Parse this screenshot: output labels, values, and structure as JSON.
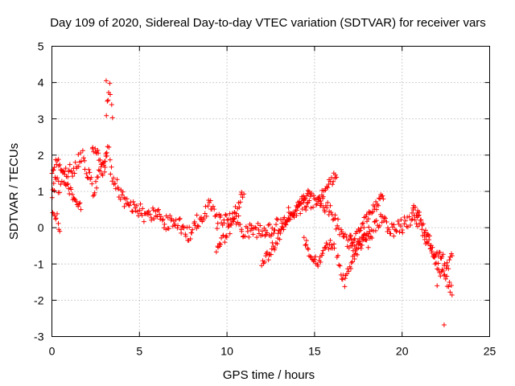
{
  "chart_data": {
    "type": "scatter",
    "title": "Day 109 of 2020, Sidereal Day-to-day VTEC variation (SDTVAR) for receiver vars",
    "xlabel": "GPS time / hours",
    "ylabel": "SDTVAR / TECUs",
    "xlim": [
      0,
      25
    ],
    "ylim": [
      -3,
      5
    ],
    "xticks": [
      0,
      5,
      10,
      15,
      20,
      25
    ],
    "yticks": [
      -3,
      -2,
      -1,
      0,
      1,
      2,
      3,
      4,
      5
    ],
    "grid": true,
    "marker": "+",
    "color": "#ff0000",
    "series": [
      {
        "name": "SDTVAR",
        "trace_x": [
          0.0,
          0.2,
          0.4,
          0.6,
          0.8,
          1.0,
          1.2,
          1.4,
          1.6,
          1.8,
          2.0,
          2.2,
          2.4,
          2.6,
          2.8,
          3.0,
          3.2,
          3.4,
          3.6,
          3.8,
          4.0,
          4.3,
          4.6,
          5.0,
          5.4,
          5.8,
          6.2,
          6.6,
          7.0,
          7.4,
          7.8,
          8.2,
          8.6,
          9.0,
          9.4,
          9.8,
          10.2,
          10.6,
          11.0,
          11.4,
          11.8,
          12.2,
          12.6,
          13.0,
          13.4,
          13.8,
          14.2,
          14.6,
          15.0,
          15.4,
          15.8,
          16.2,
          16.6,
          17.0,
          17.4,
          17.8,
          18.2,
          18.6,
          19.0,
          19.4,
          19.8,
          20.2,
          20.6,
          21.0,
          21.4,
          21.8,
          22.2,
          22.6,
          22.9
        ],
        "trace_y": [
          0.9,
          1.3,
          1.1,
          1.4,
          1.5,
          1.7,
          1.6,
          1.8,
          1.9,
          2.0,
          1.6,
          1.3,
          1.0,
          1.3,
          1.5,
          1.7,
          2.2,
          1.5,
          1.3,
          1.0,
          0.8,
          0.7,
          0.6,
          0.5,
          0.3,
          0.4,
          0.3,
          0.1,
          0.2,
          0.0,
          -0.2,
          0.1,
          0.3,
          0.6,
          0.2,
          0.1,
          0.3,
          0.2,
          -0.2,
          0.0,
          -0.1,
          -0.2,
          0.0,
          0.1,
          0.3,
          0.5,
          0.6,
          0.7,
          0.8,
          0.7,
          0.5,
          0.2,
          -0.2,
          -0.4,
          -0.6,
          -0.4,
          -0.3,
          0.2,
          0.1,
          -0.1,
          0.0,
          0.1,
          0.3,
          0.2,
          -0.3,
          -0.6,
          -0.9,
          -1.0,
          -0.8
        ],
        "branches": [
          {
            "x": [
              0.0,
              0.1,
              0.2,
              0.3,
              0.4,
              0.5
            ],
            "y": [
              0.6,
              0.3,
              0.1,
              0.4,
              0.0,
              -0.1
            ]
          },
          {
            "x": [
              0.0,
              0.2,
              0.5,
              0.9,
              1.3,
              1.7
            ],
            "y": [
              1.5,
              1.9,
              1.6,
              1.1,
              0.8,
              0.6
            ]
          },
          {
            "x": [
              2.3,
              2.6,
              2.9,
              3.2
            ],
            "y": [
              2.3,
              2.0,
              1.8,
              2.0
            ]
          },
          {
            "x": [
              3.1,
              3.2,
              3.3,
              3.4,
              3.5
            ],
            "y": [
              3.2,
              3.6,
              3.9,
              3.5,
              2.8
            ]
          },
          {
            "x": [
              9.4,
              9.8,
              10.2,
              10.6,
              11.0
            ],
            "y": [
              -0.7,
              -0.3,
              0.0,
              0.6,
              1.0
            ]
          },
          {
            "x": [
              12.0,
              12.4,
              12.8,
              13.2,
              13.6,
              14.0,
              14.4,
              14.8
            ],
            "y": [
              -1.1,
              -0.7,
              -0.4,
              0.0,
              0.3,
              0.5,
              0.8,
              1.0
            ]
          },
          {
            "x": [
              14.4,
              14.8,
              15.2,
              15.6,
              16.0,
              16.2
            ],
            "y": [
              -0.3,
              -0.8,
              -1.0,
              -0.6,
              -0.4,
              -0.6
            ]
          },
          {
            "x": [
              15.2,
              15.6,
              16.0,
              16.3
            ],
            "y": [
              0.8,
              1.0,
              1.3,
              1.5
            ]
          },
          {
            "x": [
              16.3,
              16.5,
              16.7,
              17.0,
              17.4,
              17.8,
              18.2
            ],
            "y": [
              -0.8,
              -1.2,
              -1.5,
              -1.1,
              -0.7,
              -0.3,
              0.0
            ]
          },
          {
            "x": [
              17.0,
              17.5,
              18.0,
              18.5,
              19.0
            ],
            "y": [
              -0.4,
              -0.1,
              0.3,
              0.6,
              0.9
            ]
          },
          {
            "x": [
              20.6,
              21.0,
              21.4,
              21.8,
              22.2,
              22.6,
              22.9
            ],
            "y": [
              0.5,
              0.3,
              -0.2,
              -0.8,
              -1.2,
              -1.5,
              -1.8
            ]
          }
        ],
        "outliers_x": [
          3.1,
          22.4,
          22.0
        ],
        "outliers_y": [
          4.05,
          -2.68,
          -1.6
        ]
      }
    ]
  }
}
